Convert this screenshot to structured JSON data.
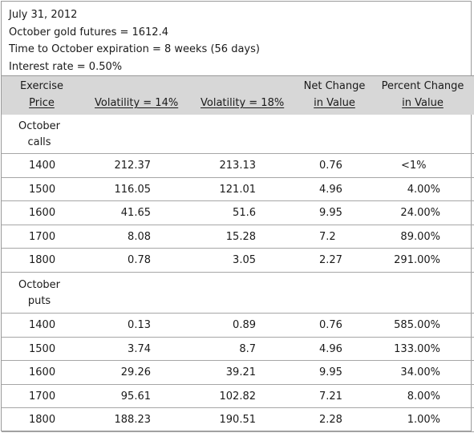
{
  "info": {
    "date": "July 31, 2012",
    "futures": "October gold futures = 1612.4",
    "expiration": "Time to October expiration = 8 weeks (56 days)",
    "rate": "Interest rate = 0.50%"
  },
  "headers": {
    "exercise_line1": "Exercise",
    "exercise_line2": "Price",
    "vol14": "Volatility = 14%",
    "vol18": "Volatility = 18%",
    "netchange_line1": "Net Change",
    "netchange_line2": "in Value",
    "pct_line1": "Percent Change",
    "pct_line2": "in Value"
  },
  "calls": {
    "label_line1": "October",
    "label_line2": "calls",
    "rows": [
      {
        "strike": "1400",
        "vol14": "212.37",
        "vol18": "213.13",
        "net": "0.76",
        "pct": "<1%"
      },
      {
        "strike": "1500",
        "vol14": "116.05",
        "vol18": "121.01",
        "net": "4.96",
        "pct": "4.00%"
      },
      {
        "strike": "1600",
        "vol14": "41.65",
        "vol18": "51.6",
        "net": "9.95",
        "pct": "24.00%"
      },
      {
        "strike": "1700",
        "vol14": "8.08",
        "vol18": "15.28",
        "net": "7.2",
        "pct": "89.00%"
      },
      {
        "strike": "1800",
        "vol14": "0.78",
        "vol18": "3.05",
        "net": "2.27",
        "pct": "291.00%"
      }
    ]
  },
  "puts": {
    "label_line1": "October",
    "label_line2": "puts",
    "rows": [
      {
        "strike": "1400",
        "vol14": "0.13",
        "vol18": "0.89",
        "net": "0.76",
        "pct": "585.00%"
      },
      {
        "strike": "1500",
        "vol14": "3.74",
        "vol18": "8.7",
        "net": "4.96",
        "pct": "133.00%"
      },
      {
        "strike": "1600",
        "vol14": "29.26",
        "vol18": "39.21",
        "net": "9.95",
        "pct": "34.00%"
      },
      {
        "strike": "1700",
        "vol14": "95.61",
        "vol18": "102.82",
        "net": "7.21",
        "pct": "8.00%"
      },
      {
        "strike": "1800",
        "vol14": "188.23",
        "vol18": "190.51",
        "net": "2.28",
        "pct": "1.00%"
      }
    ]
  }
}
